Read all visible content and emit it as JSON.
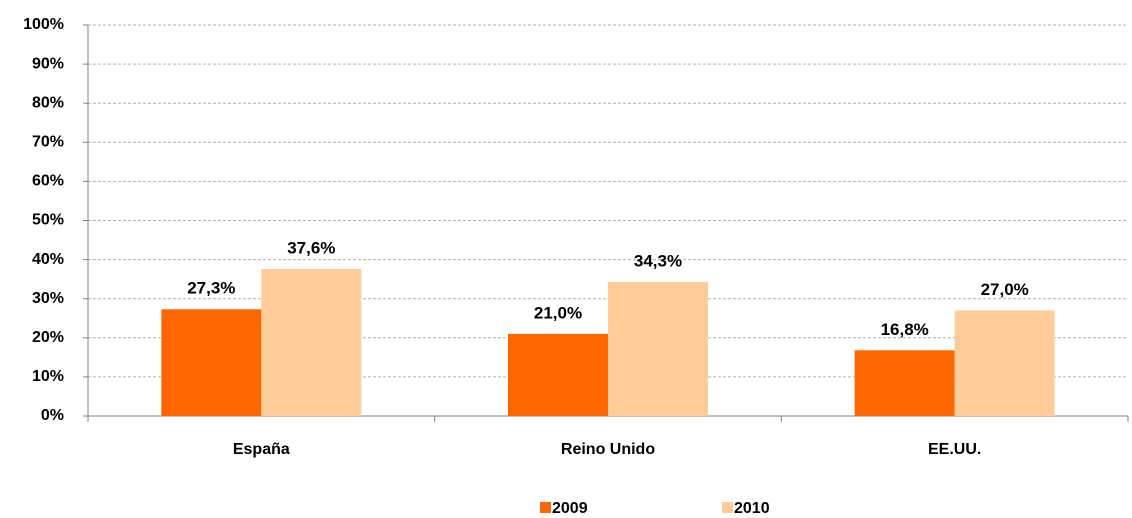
{
  "chart_data": {
    "type": "bar",
    "categories": [
      "España",
      "Reino Unido",
      "EE.UU."
    ],
    "series": [
      {
        "name": "2009",
        "color": "#ff6600",
        "values": [
          27.3,
          21.0,
          16.8
        ],
        "value_labels": [
          "27,3%",
          "21,0%",
          "16,8%"
        ]
      },
      {
        "name": "2010",
        "color": "#ffcc99",
        "values": [
          37.6,
          34.3,
          27.0
        ],
        "value_labels": [
          "37,6%",
          "34,3%",
          "27,0%"
        ]
      }
    ],
    "ylim": [
      0,
      100
    ],
    "yticks": [
      {
        "value": 0,
        "label": "0%"
      },
      {
        "value": 10,
        "label": "10%"
      },
      {
        "value": 20,
        "label": "20%"
      },
      {
        "value": 30,
        "label": "30%"
      },
      {
        "value": 40,
        "label": "40%"
      },
      {
        "value": 50,
        "label": "50%"
      },
      {
        "value": 60,
        "label": "60%"
      },
      {
        "value": 70,
        "label": "70%"
      },
      {
        "value": 80,
        "label": "80%"
      },
      {
        "value": 90,
        "label": "90%"
      },
      {
        "value": 100,
        "label": "100%"
      }
    ],
    "grid": true,
    "legend": "bottom"
  }
}
